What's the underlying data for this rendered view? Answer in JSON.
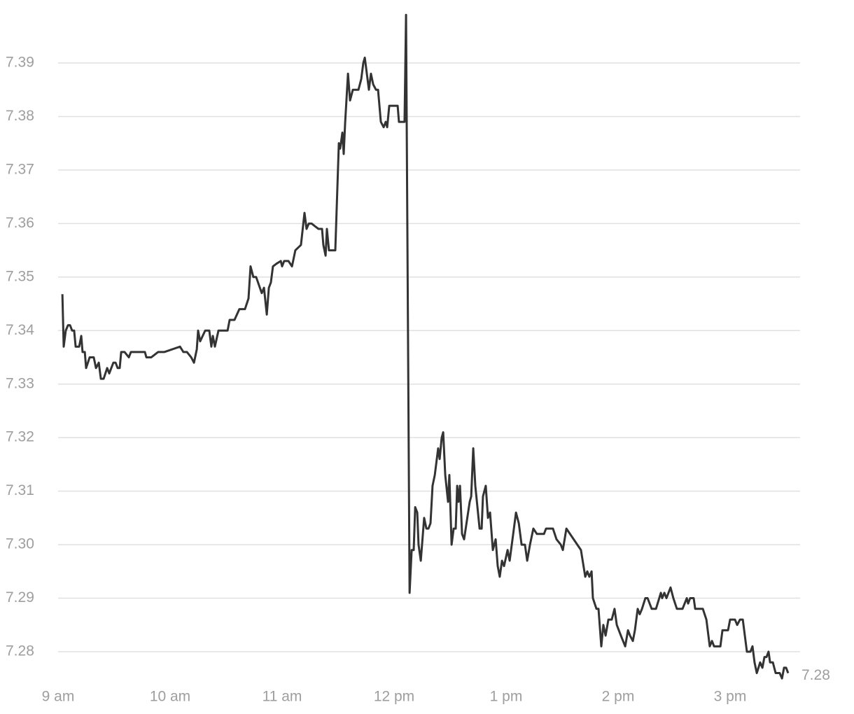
{
  "chart_data": {
    "type": "line",
    "color": "#333333",
    "grid": true,
    "x": [
      542.3,
      543,
      544.1,
      545.3,
      546.4,
      547.5,
      548.6,
      549.4,
      551.3,
      552.4,
      553.1,
      554.3,
      555,
      556.9,
      559.1,
      560.3,
      561.8,
      562.9,
      564.4,
      566.3,
      567.4,
      569.6,
      570.8,
      571.9,
      573,
      573.8,
      575.6,
      577.9,
      579,
      586.5,
      587.3,
      589.9,
      593.6,
      597,
      605.3,
      607.1,
      609,
      611.3,
      612.8,
      614.3,
      615,
      616.1,
      618.8,
      621,
      622.1,
      622.9,
      624,
      625.9,
      630.8,
      631.9,
      634.5,
      637.1,
      640.1,
      642,
      643.1,
      644.6,
      646.1,
      649.1,
      650.3,
      651.8,
      652.9,
      654,
      655.1,
      657,
      659.3,
      660,
      661.1,
      663.4,
      665.3,
      667.1,
      670.1,
      672,
      673.1,
      674.3,
      675.8,
      677.6,
      679.5,
      681.4,
      682.1,
      683.3,
      684,
      685.1,
      688.5,
      690.4,
      691.1,
      692.3,
      693,
      693.8,
      695.3,
      696.4,
      697.9,
      700.9,
      702.4,
      703.5,
      704.3,
      705.4,
      706.5,
      707.6,
      708.8,
      710.3,
      711.4,
      712.9,
      714.4,
      715.5,
      716.3,
      717.4,
      721.9,
      722.6,
      725.6,
      726.4,
      728.3,
      729.4,
      730.5,
      731.3,
      732.4,
      733.1,
      734.3,
      736.1,
      737.3,
      738.4,
      739.5,
      740.6,
      741.8,
      743.6,
      744.4,
      745.5,
      746.3,
      747.4,
      748.9,
      749.6,
      750.8,
      751.9,
      753,
      753.8,
      754.5,
      755.3,
      756.4,
      757.5,
      760.5,
      761.3,
      762.4,
      763.5,
      765.8,
      766.9,
      767.6,
      769.1,
      770.3,
      771.4,
      772.9,
      774.4,
      775.5,
      776.6,
      777.8,
      778.9,
      780.8,
      781.9,
      783.8,
      785.3,
      786.8,
      788.3,
      790.1,
      791.3,
      792.8,
      794.6,
      796.5,
      800.3,
      801.4,
      805.1,
      807,
      809.3,
      810.4,
      812.3,
      820.1,
      822.4,
      823.5,
      824.6,
      825.8,
      826.5,
      828.4,
      829.5,
      831,
      832.1,
      833.3,
      834.8,
      836.6,
      838.1,
      839.3,
      841.5,
      843.8,
      845.3,
      846.4,
      847.9,
      849,
      850.5,
      851.6,
      852.8,
      854.6,
      855.8,
      858,
      860.3,
      862.9,
      863.6,
      864.8,
      865.9,
      868.1,
      869.6,
      871.5,
      874.5,
      876.8,
      877.5,
      878.6,
      880.5,
      881.3,
      885.4,
      887.3,
      889.1,
      890.3,
      891.4,
      894.8,
      895.9,
      898.9,
      900,
      902.6,
      903.8,
      905.3,
      906.8,
      909,
      910.9,
      912,
      913.1,
      914.3,
      916.1,
      917.3,
      918.4,
      919.5,
      920.6,
      921.4,
      922.9,
      924.4,
      926.6,
      927.8,
      928.9,
      930,
      931.1
    ],
    "values": [
      7.3468,
      7.337,
      7.34,
      7.341,
      7.341,
      7.34,
      7.34,
      7.337,
      7.337,
      7.339,
      7.336,
      7.336,
      7.333,
      7.335,
      7.335,
      7.333,
      7.334,
      7.331,
      7.331,
      7.333,
      7.332,
      7.334,
      7.334,
      7.333,
      7.333,
      7.336,
      7.336,
      7.335,
      7.336,
      7.336,
      7.335,
      7.335,
      7.336,
      7.336,
      7.337,
      7.336,
      7.336,
      7.335,
      7.334,
      7.3365,
      7.34,
      7.338,
      7.34,
      7.34,
      7.337,
      7.339,
      7.337,
      7.34,
      7.34,
      7.342,
      7.342,
      7.344,
      7.344,
      7.346,
      7.352,
      7.35,
      7.35,
      7.347,
      7.348,
      7.343,
      7.348,
      7.349,
      7.352,
      7.3525,
      7.353,
      7.352,
      7.353,
      7.353,
      7.352,
      7.355,
      7.356,
      7.362,
      7.359,
      7.36,
      7.36,
      7.3595,
      7.359,
      7.359,
      7.356,
      7.354,
      7.359,
      7.355,
      7.355,
      7.375,
      7.374,
      7.377,
      7.373,
      7.379,
      7.388,
      7.383,
      7.385,
      7.385,
      7.387,
      7.39,
      7.391,
      7.388,
      7.385,
      7.388,
      7.386,
      7.385,
      7.385,
      7.379,
      7.378,
      7.379,
      7.378,
      7.382,
      7.382,
      7.379,
      7.379,
      7.399,
      7.291,
      7.299,
      7.299,
      7.307,
      7.306,
      7.3,
      7.297,
      7.305,
      7.303,
      7.303,
      7.304,
      7.311,
      7.313,
      7.318,
      7.316,
      7.32,
      7.321,
      7.313,
      7.308,
      7.313,
      7.3,
      7.303,
      7.303,
      7.311,
      7.308,
      7.311,
      7.302,
      7.301,
      7.308,
      7.309,
      7.318,
      7.311,
      7.303,
      7.303,
      7.309,
      7.311,
      7.305,
      7.306,
      7.299,
      7.301,
      7.296,
      7.294,
      7.297,
      7.296,
      7.299,
      7.297,
      7.302,
      7.306,
      7.304,
      7.3,
      7.3,
      7.297,
      7.3,
      7.303,
      7.302,
      7.302,
      7.303,
      7.303,
      7.301,
      7.3,
      7.299,
      7.303,
      7.299,
      7.294,
      7.295,
      7.294,
      7.295,
      7.29,
      7.288,
      7.288,
      7.281,
      7.285,
      7.283,
      7.286,
      7.286,
      7.288,
      7.285,
      7.283,
      7.281,
      7.284,
      7.283,
      7.282,
      7.284,
      7.288,
      7.287,
      7.288,
      7.29,
      7.29,
      7.288,
      7.288,
      7.291,
      7.29,
      7.291,
      7.29,
      7.292,
      7.29,
      7.288,
      7.288,
      7.29,
      7.289,
      7.29,
      7.29,
      7.288,
      7.288,
      7.286,
      7.281,
      7.282,
      7.281,
      7.281,
      7.284,
      7.284,
      7.286,
      7.286,
      7.285,
      7.286,
      7.286,
      7.28,
      7.28,
      7.281,
      7.278,
      7.276,
      7.278,
      7.277,
      7.279,
      7.279,
      7.28,
      7.278,
      7.278,
      7.276,
      7.276,
      7.275,
      7.277,
      7.277,
      7.276
    ],
    "last_value_label": "7.28",
    "xlim": [
      540,
      937.5
    ],
    "xticks": [
      {
        "value": 540,
        "label": "9 am"
      },
      {
        "value": 600,
        "label": "10 am"
      },
      {
        "value": 660,
        "label": "11 am"
      },
      {
        "value": 720,
        "label": "12 pm"
      },
      {
        "value": 780,
        "label": "1 pm"
      },
      {
        "value": 840,
        "label": "2 pm"
      },
      {
        "value": 900,
        "label": "3 pm"
      }
    ],
    "ylim": [
      7.275,
      7.4
    ],
    "yticks": [
      7.28,
      7.29,
      {
        "value": 7.3,
        "label": "7.30"
      },
      7.31,
      7.32,
      7.33,
      7.34,
      7.35,
      7.36,
      7.37,
      7.38,
      7.39
    ]
  }
}
